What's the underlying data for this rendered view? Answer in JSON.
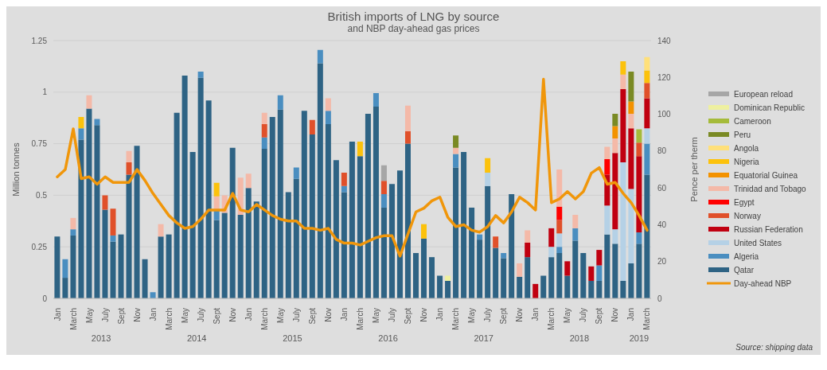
{
  "chart_data": {
    "type": "bar",
    "stacked": true,
    "title": "British imports of LNG by source",
    "subtitle": "and NBP day-ahead gas prices",
    "ylabel": "Million tonnes",
    "y2label": "Pence per therm",
    "categories": [
      "Jan",
      null,
      "March",
      null,
      "May",
      null,
      "July",
      null,
      "Sept",
      null,
      "Nov",
      null,
      "Jan",
      null,
      "March",
      null,
      "May",
      null,
      "July",
      null,
      "Sept",
      null,
      "Nov",
      null,
      "Jan",
      null,
      "March",
      null,
      "May",
      null,
      "July",
      null,
      "Sept",
      null,
      "Nov",
      null,
      "Jan",
      null,
      "March",
      null,
      "May",
      null,
      "July",
      null,
      "Sept",
      null,
      "Nov",
      null,
      "Jan",
      null,
      "March",
      null,
      "May",
      null,
      "July",
      null,
      "Sept",
      null,
      "Nov",
      null,
      "Jan",
      null,
      "March",
      null,
      "May",
      null,
      "July",
      null,
      "Sept",
      null,
      "Nov",
      null,
      "Jan",
      null,
      "March"
    ],
    "ylim": [
      0,
      1.25
    ],
    "yticks": [
      0,
      0.25,
      0.5,
      0.75,
      1,
      1.25
    ],
    "y2lim": [
      0,
      140
    ],
    "y2ticks": [
      0,
      20,
      40,
      60,
      80,
      100,
      120,
      140
    ],
    "grid": "y",
    "legend": "right",
    "annotations": [
      "2013",
      "2014",
      "2015",
      "2016",
      "2017",
      "2018",
      "2019",
      "Source: shipping data"
    ],
    "series": [
      {
        "name": "Qatar",
        "color": "#2e6384",
        "values": [
          0.3,
          0.1,
          0.305,
          0.77,
          0.92,
          0.84,
          0.43,
          0.275,
          0.31,
          0.6,
          0.74,
          0.19,
          null,
          0.3,
          0.31,
          0.9,
          1.08,
          0.71,
          1.07,
          0.96,
          0.38,
          0.415,
          0.73,
          0.405,
          0.535,
          0.47,
          0.725,
          0.88,
          0.915,
          0.515,
          0.58,
          0.91,
          0.795,
          1.14,
          0.845,
          0.67,
          0.515,
          0.76,
          0.69,
          0.895,
          0.93,
          0.44,
          0.555,
          0.62,
          0.75,
          0.22,
          0.29,
          0.2,
          0.11,
          0.085,
          0.635,
          0.71,
          0.44,
          0.285,
          0.545,
          0.245,
          0.195,
          0.505,
          0.105,
          0.2,
          null,
          0.11,
          0.2,
          0.22,
          0.11,
          0.28,
          0.22,
          0.085,
          0.085,
          0.31,
          0.265,
          0.085,
          0.17,
          0.265,
          0.6
        ]
      },
      {
        "name": "Algeria",
        "color": "#4a8ec0",
        "values": [
          null,
          0.09,
          0.03,
          0.055,
          null,
          0.03,
          null,
          0.03,
          null,
          null,
          null,
          null,
          0.03,
          null,
          null,
          null,
          null,
          null,
          0.03,
          null,
          0.045,
          null,
          null,
          null,
          null,
          null,
          0.055,
          null,
          0.07,
          null,
          0.055,
          null,
          null,
          0.065,
          0.065,
          null,
          0.03,
          null,
          null,
          null,
          0.065,
          0.065,
          null,
          null,
          null,
          null,
          null,
          null,
          null,
          null,
          0.065,
          null,
          null,
          0.025,
          null,
          null,
          0.025,
          null,
          null,
          null,
          null,
          null,
          null,
          0.03,
          null,
          0.06,
          null,
          null,
          0.075,
          null,
          null,
          null,
          null,
          0.055,
          0.15
        ]
      },
      {
        "name": "United States",
        "color": "#b5d1e6",
        "values": [
          null,
          null,
          null,
          null,
          null,
          null,
          null,
          null,
          null,
          null,
          null,
          null,
          null,
          null,
          null,
          null,
          null,
          null,
          null,
          null,
          null,
          null,
          null,
          null,
          null,
          null,
          null,
          null,
          null,
          null,
          null,
          null,
          null,
          null,
          null,
          null,
          null,
          null,
          null,
          null,
          null,
          null,
          null,
          null,
          null,
          null,
          null,
          null,
          null,
          null,
          null,
          null,
          null,
          null,
          0.065,
          null,
          null,
          null,
          null,
          null,
          null,
          null,
          0.05,
          0.065,
          null,
          null,
          null,
          null,
          null,
          0.14,
          0.07,
          0.575,
          0.36,
          null,
          0.075
        ]
      },
      {
        "name": "Russian Federation",
        "color": "#c00010",
        "values": [
          null,
          null,
          null,
          null,
          null,
          null,
          null,
          null,
          null,
          null,
          null,
          null,
          null,
          null,
          null,
          null,
          null,
          null,
          null,
          null,
          null,
          null,
          null,
          null,
          null,
          null,
          null,
          null,
          null,
          null,
          null,
          null,
          null,
          null,
          null,
          null,
          null,
          null,
          null,
          null,
          null,
          null,
          null,
          null,
          null,
          null,
          null,
          null,
          null,
          null,
          null,
          null,
          null,
          null,
          null,
          null,
          null,
          null,
          null,
          0.07,
          0.07,
          null,
          0.09,
          null,
          0.07,
          null,
          null,
          0.07,
          0.075,
          0.15,
          0.37,
          0.355,
          0.295,
          0.37,
          0.145
        ]
      },
      {
        "name": "Norway",
        "color": "#e0502a",
        "values": [
          null,
          null,
          null,
          null,
          null,
          null,
          0.07,
          0.13,
          null,
          0.06,
          null,
          null,
          null,
          null,
          null,
          null,
          null,
          null,
          null,
          null,
          null,
          null,
          null,
          null,
          null,
          null,
          0.065,
          null,
          null,
          null,
          null,
          null,
          0.07,
          null,
          null,
          null,
          0.065,
          null,
          null,
          null,
          null,
          0.065,
          null,
          null,
          0.06,
          null,
          null,
          null,
          null,
          null,
          null,
          null,
          null,
          null,
          null,
          0.055,
          null,
          null,
          null,
          null,
          null,
          null,
          null,
          0.065,
          null,
          null,
          null,
          null,
          null,
          null,
          null,
          null,
          null,
          0.065,
          0.075
        ]
      },
      {
        "name": "Egypt",
        "color": "#ff0000",
        "values": [
          null,
          null,
          null,
          null,
          null,
          null,
          null,
          null,
          null,
          null,
          null,
          null,
          null,
          null,
          null,
          null,
          null,
          null,
          null,
          null,
          null,
          null,
          null,
          null,
          null,
          null,
          null,
          null,
          null,
          null,
          null,
          null,
          null,
          null,
          null,
          null,
          null,
          null,
          null,
          null,
          null,
          null,
          null,
          null,
          null,
          null,
          null,
          null,
          null,
          null,
          null,
          null,
          null,
          null,
          null,
          null,
          null,
          null,
          null,
          null,
          null,
          null,
          null,
          0.065,
          null,
          null,
          null,
          null,
          null,
          0.075,
          null,
          null,
          null,
          null,
          null
        ]
      },
      {
        "name": "Trinidad and Tobago",
        "color": "#f4b9a8",
        "values": [
          null,
          null,
          0.055,
          null,
          0.065,
          null,
          null,
          null,
          null,
          0.055,
          null,
          null,
          null,
          0.06,
          null,
          null,
          null,
          null,
          null,
          null,
          0.07,
          0.085,
          null,
          0.18,
          0.07,
          null,
          0.055,
          null,
          null,
          null,
          null,
          null,
          null,
          null,
          0.06,
          null,
          null,
          null,
          null,
          null,
          null,
          null,
          null,
          null,
          0.125,
          null,
          null,
          null,
          null,
          null,
          0.03,
          null,
          null,
          null,
          null,
          null,
          null,
          null,
          0.065,
          0.06,
          null,
          null,
          null,
          0.18,
          null,
          0.065,
          null,
          null,
          null,
          0.06,
          0.07,
          0.07,
          0.07,
          null,
          null
        ]
      },
      {
        "name": "Equatorial Guinea",
        "color": "#f39200",
        "values": [
          null,
          null,
          null,
          null,
          null,
          null,
          null,
          null,
          null,
          null,
          null,
          null,
          null,
          null,
          null,
          null,
          null,
          null,
          null,
          null,
          null,
          null,
          null,
          null,
          null,
          null,
          null,
          null,
          null,
          null,
          null,
          null,
          null,
          null,
          null,
          null,
          null,
          null,
          null,
          null,
          null,
          null,
          null,
          null,
          null,
          null,
          null,
          null,
          null,
          null,
          null,
          null,
          null,
          null,
          null,
          null,
          null,
          null,
          null,
          null,
          null,
          null,
          null,
          null,
          null,
          null,
          null,
          null,
          null,
          null,
          0.06,
          null,
          0.06,
          null,
          null
        ]
      },
      {
        "name": "Nigeria",
        "color": "#fcc20c",
        "values": [
          null,
          null,
          null,
          0.055,
          null,
          null,
          null,
          null,
          null,
          null,
          null,
          null,
          null,
          null,
          null,
          null,
          null,
          null,
          null,
          null,
          0.065,
          null,
          null,
          null,
          null,
          null,
          null,
          null,
          null,
          null,
          null,
          null,
          null,
          null,
          null,
          null,
          null,
          null,
          0.07,
          null,
          null,
          null,
          null,
          null,
          null,
          null,
          0.07,
          null,
          null,
          null,
          null,
          null,
          null,
          null,
          0.07,
          null,
          null,
          null,
          null,
          null,
          null,
          null,
          null,
          null,
          null,
          null,
          null,
          null,
          null,
          null,
          null,
          0.065,
          null,
          null,
          0.06
        ]
      },
      {
        "name": "Angola",
        "color": "#ffe07a",
        "values": [
          null,
          null,
          null,
          null,
          null,
          null,
          null,
          null,
          null,
          null,
          null,
          null,
          null,
          null,
          null,
          null,
          null,
          null,
          null,
          null,
          null,
          null,
          null,
          null,
          null,
          null,
          null,
          null,
          null,
          null,
          null,
          null,
          null,
          null,
          null,
          null,
          null,
          null,
          null,
          null,
          null,
          null,
          null,
          null,
          null,
          null,
          null,
          null,
          null,
          null,
          null,
          null,
          null,
          null,
          null,
          null,
          null,
          null,
          null,
          null,
          null,
          null,
          null,
          null,
          null,
          null,
          null,
          null,
          null,
          null,
          null,
          null,
          null,
          null,
          0.065
        ]
      },
      {
        "name": "Peru",
        "color": "#7a8a24",
        "values": [
          null,
          null,
          null,
          null,
          null,
          null,
          null,
          null,
          null,
          null,
          null,
          null,
          null,
          null,
          null,
          null,
          null,
          null,
          null,
          null,
          null,
          null,
          null,
          null,
          null,
          null,
          null,
          null,
          null,
          null,
          null,
          null,
          null,
          null,
          null,
          null,
          null,
          null,
          null,
          null,
          null,
          null,
          null,
          null,
          null,
          null,
          null,
          null,
          null,
          null,
          0.06,
          null,
          null,
          null,
          null,
          null,
          null,
          null,
          null,
          null,
          null,
          null,
          null,
          null,
          null,
          null,
          null,
          null,
          null,
          null,
          0.06,
          null,
          0.145,
          null,
          null
        ]
      },
      {
        "name": "Cameroon",
        "color": "#a5bb3a",
        "values": [
          null,
          null,
          null,
          null,
          null,
          null,
          null,
          null,
          null,
          null,
          null,
          null,
          null,
          null,
          null,
          null,
          null,
          null,
          null,
          null,
          null,
          null,
          null,
          null,
          null,
          null,
          null,
          null,
          null,
          null,
          null,
          null,
          null,
          null,
          null,
          null,
          null,
          null,
          null,
          null,
          null,
          null,
          null,
          null,
          null,
          null,
          null,
          null,
          null,
          null,
          null,
          null,
          null,
          null,
          null,
          null,
          null,
          null,
          null,
          null,
          null,
          null,
          null,
          null,
          null,
          null,
          null,
          null,
          null,
          null,
          null,
          null,
          null,
          0.065,
          null
        ]
      },
      {
        "name": "Dominican Republic",
        "color": "#eef0a0",
        "values": [
          null,
          null,
          null,
          null,
          null,
          null,
          null,
          null,
          null,
          null,
          null,
          null,
          null,
          null,
          null,
          null,
          null,
          null,
          null,
          null,
          null,
          null,
          null,
          null,
          null,
          null,
          null,
          null,
          null,
          null,
          null,
          null,
          null,
          null,
          null,
          null,
          null,
          null,
          null,
          null,
          null,
          null,
          null,
          null,
          null,
          null,
          null,
          null,
          null,
          0.025,
          null,
          null,
          null,
          null,
          null,
          null,
          null,
          null,
          null,
          null,
          null,
          null,
          null,
          null,
          null,
          null,
          null,
          null,
          null,
          null,
          null,
          null,
          null,
          null,
          null
        ]
      },
      {
        "name": "European reload",
        "color": "#a6a6a6",
        "values": [
          null,
          null,
          null,
          null,
          null,
          null,
          null,
          null,
          null,
          null,
          null,
          null,
          null,
          null,
          null,
          null,
          null,
          null,
          null,
          null,
          null,
          null,
          null,
          null,
          null,
          null,
          null,
          null,
          null,
          null,
          null,
          null,
          null,
          null,
          null,
          null,
          null,
          null,
          null,
          null,
          null,
          0.075,
          null,
          null,
          null,
          null,
          null,
          null,
          null,
          null,
          null,
          null,
          null,
          null,
          null,
          null,
          null,
          null,
          null,
          null,
          null,
          null,
          null,
          null,
          null,
          null,
          null,
          null,
          null,
          null,
          null,
          null,
          null,
          null,
          null
        ]
      },
      {
        "name": "Day-ahead NBP",
        "type": "line",
        "axis": "y2",
        "color": "#f0960a",
        "values": [
          66,
          70,
          92,
          65,
          66,
          62,
          66,
          63,
          63,
          63,
          70,
          64,
          57,
          51,
          45,
          41,
          38,
          39,
          43,
          48,
          48,
          48,
          57,
          48,
          47,
          51,
          48,
          45,
          43,
          42,
          42,
          38,
          38,
          37,
          38,
          32,
          30,
          30,
          29,
          31,
          33,
          34,
          34,
          23,
          35,
          47,
          49,
          53,
          55,
          44,
          39,
          40,
          37,
          36,
          39,
          45,
          41,
          47,
          55,
          52,
          48,
          119,
          52,
          54,
          58,
          54,
          58,
          68,
          71,
          62,
          63,
          57,
          52,
          45,
          37
        ]
      }
    ]
  }
}
